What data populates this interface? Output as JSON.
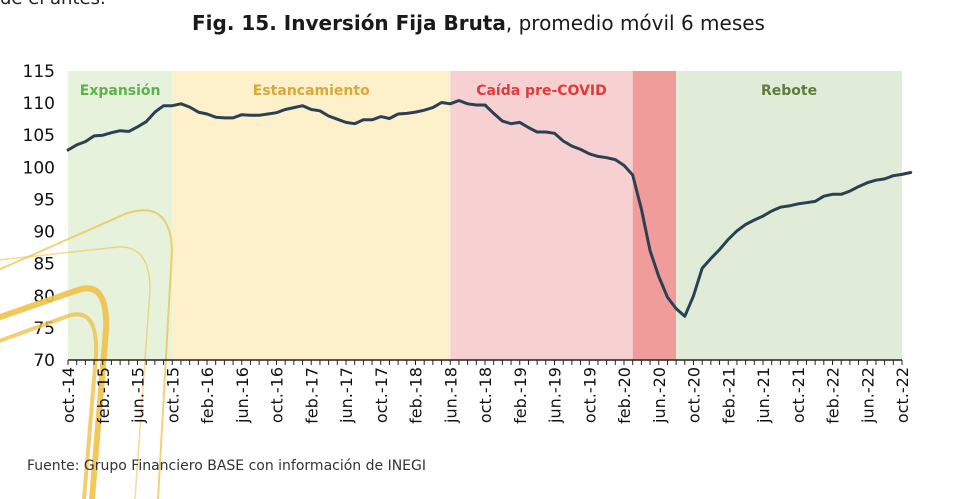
{
  "page": {
    "top_fragment": "de el antes.",
    "title_bold": "Fig. 15. Inversión Fija Bruta",
    "title_rest": ", promedio móvil 6 meses",
    "source": "Fuente: Grupo Financiero BASE con información de INEGI"
  },
  "colors": {
    "line": "#2b4052",
    "expansion_bg": "#e6f2dc",
    "stagnation_bg": "#fdf1cc",
    "precovid_bg": "#f7d1d1",
    "covid_bg": "#f09c9a",
    "rebound_bg": "#e0ecd8",
    "expansion_text": "#5fb14a",
    "stagnation_text": "#d8a935",
    "precovid_text": "#e03a3a",
    "rebound_text": "#5e7b3a",
    "decor_arcs": "#efc24a"
  },
  "chart_data": {
    "type": "line",
    "title": "Fig. 15. Inversión Fija Bruta, promedio móvil 6 meses",
    "ylim": [
      70,
      115
    ],
    "yticks": [
      70,
      75,
      80,
      85,
      90,
      95,
      100,
      105,
      110,
      115
    ],
    "x_start": "2014-10",
    "x_end": "2022-10",
    "xticks": [
      "oct.-14",
      "feb.-15",
      "jun.-15",
      "oct.-15",
      "feb.-16",
      "jun.-16",
      "oct.-16",
      "feb.-17",
      "jun.-17",
      "oct.-17",
      "feb.-18",
      "jun.-18",
      "oct.-18",
      "feb.-19",
      "jun.-19",
      "oct.-19",
      "feb.-20",
      "jun.-20",
      "oct.-20",
      "feb.-21",
      "jun.-21",
      "oct.-21",
      "feb.-22",
      "jun.-22",
      "oct.-22"
    ],
    "regimes": [
      {
        "label": "Expansión",
        "from": "2014-10",
        "to": "2015-10",
        "color_key": "expansion"
      },
      {
        "label": "Estancamiento",
        "from": "2015-10",
        "to": "2018-06",
        "color_key": "stagnation"
      },
      {
        "label": "Caída pre-COVID",
        "from": "2018-06",
        "to": "2020-03",
        "color_key": "precovid"
      },
      {
        "label": "",
        "from": "2020-03",
        "to": "2020-08",
        "color_key": "covid"
      },
      {
        "label": "Rebote",
        "from": "2020-08",
        "to": "2022-10",
        "color_key": "rebound"
      }
    ],
    "series": [
      {
        "values": [
          102.7,
          103.5,
          104.0,
          104.9,
          105.0,
          105.4,
          105.7,
          105.6,
          106.3,
          107.1,
          108.6,
          109.6,
          109.6,
          109.9,
          109.4,
          108.6,
          108.3,
          107.8,
          107.7,
          107.7,
          108.2,
          108.1,
          108.1,
          108.3,
          108.5,
          109.0,
          109.3,
          109.6,
          109.0,
          108.8,
          108.0,
          107.5,
          107.0,
          106.8,
          107.4,
          107.4,
          107.9,
          107.6,
          108.3,
          108.4,
          108.6,
          108.9,
          109.3,
          110.1,
          109.9,
          110.4,
          109.9,
          109.7,
          109.7,
          108.4,
          107.2,
          106.8,
          107.0,
          106.2,
          105.5,
          105.5,
          105.3,
          104.1,
          103.3,
          102.8,
          102.1,
          101.7,
          101.5,
          101.2,
          100.3,
          98.8,
          93.5,
          87.0,
          83.0,
          79.8,
          78.0,
          76.8,
          80.0,
          84.3,
          85.8,
          87.2,
          88.8,
          90.1,
          91.1,
          91.8,
          92.4,
          93.2,
          93.8,
          94.0,
          94.3,
          94.5,
          94.7,
          95.5,
          95.8,
          95.8,
          96.3,
          97.0,
          97.6,
          98.0,
          98.2,
          98.7,
          98.9,
          99.2
        ]
      }
    ]
  }
}
